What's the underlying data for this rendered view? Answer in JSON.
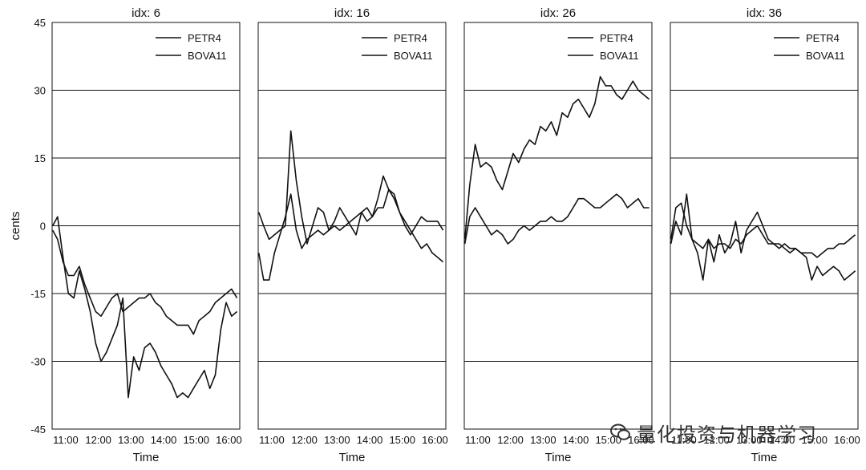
{
  "chart_data": [
    {
      "type": "line",
      "title": "idx: 6",
      "xlabel": "Time",
      "ylabel": "cents",
      "ylim": [
        -45,
        45
      ],
      "yticks": [
        -45,
        -30,
        -15,
        0,
        15,
        30,
        45
      ],
      "xlim": [
        "10:35",
        "16:20"
      ],
      "xticks": [
        "11:00",
        "12:00",
        "13:00",
        "14:00",
        "15:00",
        "16:00"
      ],
      "grid": "horizontal",
      "legend": "top-right",
      "series": [
        {
          "name": "PETR4",
          "x": [
            "10:36",
            "10:45",
            "10:55",
            "11:05",
            "11:15",
            "11:25",
            "11:35",
            "11:45",
            "11:55",
            "12:05",
            "12:15",
            "12:25",
            "12:35",
            "12:45",
            "12:55",
            "13:05",
            "13:15",
            "13:25",
            "13:35",
            "13:45",
            "13:55",
            "14:05",
            "14:15",
            "14:25",
            "14:35",
            "14:45",
            "14:55",
            "15:05",
            "15:15",
            "15:25",
            "15:35",
            "15:45",
            "15:55",
            "16:05",
            "16:15"
          ],
          "values": [
            -1,
            -3,
            -8,
            -11,
            -11,
            -9,
            -13,
            -16,
            -19,
            -20,
            -18,
            -16,
            -15,
            -19,
            -18,
            -17,
            -16,
            -16,
            -15,
            -17,
            -18,
            -20,
            -21,
            -22,
            -22,
            -22,
            -24,
            -21,
            -20,
            -19,
            -17,
            -16,
            -15,
            -14,
            -16
          ]
        },
        {
          "name": "BOVA11",
          "x": [
            "10:36",
            "10:45",
            "10:55",
            "11:05",
            "11:15",
            "11:25",
            "11:35",
            "11:45",
            "11:55",
            "12:05",
            "12:15",
            "12:25",
            "12:35",
            "12:45",
            "12:55",
            "13:05",
            "13:15",
            "13:25",
            "13:35",
            "13:45",
            "13:55",
            "14:05",
            "14:15",
            "14:25",
            "14:35",
            "14:45",
            "14:55",
            "15:05",
            "15:15",
            "15:25",
            "15:35",
            "15:45",
            "15:55",
            "16:05",
            "16:15"
          ],
          "values": [
            0,
            2,
            -7,
            -15,
            -16,
            -10,
            -14,
            -19,
            -26,
            -30,
            -28,
            -25,
            -22,
            -16,
            -38,
            -29,
            -32,
            -27,
            -26,
            -28,
            -31,
            -33,
            -35,
            -38,
            -37,
            -38,
            -36,
            -34,
            -32,
            -36,
            -33,
            -23,
            -17,
            -20,
            -19
          ]
        }
      ]
    },
    {
      "type": "line",
      "title": "idx: 16",
      "xlabel": "Time",
      "ylim": [
        -45,
        45
      ],
      "xlim": [
        "10:35",
        "16:20"
      ],
      "xticks": [
        "11:00",
        "12:00",
        "13:00",
        "14:00",
        "15:00",
        "16:00"
      ],
      "grid": "horizontal",
      "legend": "top-right",
      "series": [
        {
          "name": "PETR4",
          "x": [
            "10:36",
            "10:45",
            "10:55",
            "11:05",
            "11:15",
            "11:25",
            "11:35",
            "11:45",
            "11:55",
            "12:05",
            "12:15",
            "12:25",
            "12:35",
            "12:45",
            "12:55",
            "13:05",
            "13:15",
            "13:25",
            "13:35",
            "13:45",
            "13:55",
            "14:05",
            "14:15",
            "14:25",
            "14:35",
            "14:45",
            "14:55",
            "15:05",
            "15:15",
            "15:25",
            "15:35",
            "15:45",
            "15:55",
            "16:05",
            "16:15"
          ],
          "values": [
            -6,
            -12,
            -12,
            -6,
            -2,
            2,
            7,
            -1,
            -5,
            -3,
            -2,
            -1,
            -2,
            -1,
            0,
            -1,
            0,
            1,
            2,
            3,
            1,
            2,
            4,
            4,
            8,
            7,
            3,
            1,
            -1,
            -3,
            -5,
            -4,
            -6,
            -7,
            -8
          ]
        },
        {
          "name": "BOVA11",
          "x": [
            "10:36",
            "10:45",
            "10:55",
            "11:05",
            "11:15",
            "11:25",
            "11:35",
            "11:45",
            "11:55",
            "12:05",
            "12:15",
            "12:25",
            "12:35",
            "12:45",
            "12:55",
            "13:05",
            "13:15",
            "13:25",
            "13:35",
            "13:45",
            "13:55",
            "14:05",
            "14:15",
            "14:25",
            "14:35",
            "14:45",
            "14:55",
            "15:05",
            "15:15",
            "15:25",
            "15:35",
            "15:45",
            "15:55",
            "16:05",
            "16:15"
          ],
          "values": [
            3,
            0,
            -3,
            -2,
            -1,
            0,
            21,
            10,
            2,
            -4,
            0,
            4,
            3,
            -1,
            1,
            4,
            2,
            0,
            -2,
            3,
            4,
            2,
            6,
            11,
            8,
            6,
            3,
            0,
            -2,
            0,
            2,
            1,
            1,
            1,
            -1
          ]
        }
      ]
    },
    {
      "type": "line",
      "title": "idx: 26",
      "xlabel": "Time",
      "ylim": [
        -45,
        45
      ],
      "xlim": [
        "10:35",
        "16:20"
      ],
      "xticks": [
        "11:00",
        "12:00",
        "13:00",
        "14:00",
        "15:00",
        "16:00"
      ],
      "grid": "horizontal",
      "legend": "top-right",
      "series": [
        {
          "name": "PETR4",
          "x": [
            "10:36",
            "10:45",
            "10:55",
            "11:05",
            "11:15",
            "11:25",
            "11:35",
            "11:45",
            "11:55",
            "12:05",
            "12:15",
            "12:25",
            "12:35",
            "12:45",
            "12:55",
            "13:05",
            "13:15",
            "13:25",
            "13:35",
            "13:45",
            "13:55",
            "14:05",
            "14:15",
            "14:25",
            "14:35",
            "14:45",
            "14:55",
            "15:05",
            "15:15",
            "15:25",
            "15:35",
            "15:45",
            "15:55",
            "16:05",
            "16:15"
          ],
          "values": [
            -4,
            2,
            4,
            2,
            0,
            -2,
            -1,
            -2,
            -4,
            -3,
            -1,
            0,
            -1,
            0,
            1,
            1,
            2,
            1,
            1,
            2,
            4,
            6,
            6,
            5,
            4,
            4,
            5,
            6,
            7,
            6,
            4,
            5,
            6,
            4,
            4
          ]
        },
        {
          "name": "BOVA11",
          "x": [
            "10:36",
            "10:45",
            "10:55",
            "11:05",
            "11:15",
            "11:25",
            "11:35",
            "11:45",
            "11:55",
            "12:05",
            "12:15",
            "12:25",
            "12:35",
            "12:45",
            "12:55",
            "13:05",
            "13:15",
            "13:25",
            "13:35",
            "13:45",
            "13:55",
            "14:05",
            "14:15",
            "14:25",
            "14:35",
            "14:45",
            "14:55",
            "15:05",
            "15:15",
            "15:25",
            "15:35",
            "15:45",
            "15:55",
            "16:05",
            "16:15"
          ],
          "values": [
            -3,
            9,
            18,
            13,
            14,
            13,
            10,
            8,
            12,
            16,
            14,
            17,
            19,
            18,
            22,
            21,
            23,
            20,
            25,
            24,
            27,
            28,
            26,
            24,
            27,
            33,
            31,
            31,
            29,
            28,
            30,
            32,
            30,
            29,
            28
          ]
        }
      ]
    },
    {
      "type": "line",
      "title": "idx: 36",
      "xlabel": "Time",
      "ylim": [
        -45,
        45
      ],
      "xlim": [
        "10:35",
        "16:20"
      ],
      "xticks": [
        "11:00",
        "12:00",
        "13:00",
        "14:00",
        "15:00",
        "16:00"
      ],
      "grid": "horizontal",
      "legend": "top-right",
      "series": [
        {
          "name": "PETR4",
          "x": [
            "10:36",
            "10:45",
            "10:55",
            "11:05",
            "11:15",
            "11:25",
            "11:35",
            "11:45",
            "11:55",
            "12:05",
            "12:15",
            "12:25",
            "12:35",
            "12:45",
            "12:55",
            "13:05",
            "13:15",
            "13:25",
            "13:35",
            "13:45",
            "13:55",
            "14:05",
            "14:15",
            "14:25",
            "14:35",
            "14:45",
            "14:55",
            "15:05",
            "15:15",
            "15:25",
            "15:35",
            "15:45",
            "15:55",
            "16:05",
            "16:15"
          ],
          "values": [
            -3,
            4,
            5,
            0,
            -3,
            -4,
            -5,
            -3,
            -5,
            -4,
            -4,
            -5,
            -3,
            -4,
            -2,
            -1,
            0,
            -2,
            -4,
            -4,
            -5,
            -4,
            -5,
            -5,
            -6,
            -6,
            -6,
            -7,
            -6,
            -5,
            -5,
            -4,
            -4,
            -3,
            -2
          ]
        },
        {
          "name": "BOVA11",
          "x": [
            "10:36",
            "10:45",
            "10:55",
            "11:05",
            "11:15",
            "11:25",
            "11:35",
            "11:45",
            "11:55",
            "12:05",
            "12:15",
            "12:25",
            "12:35",
            "12:45",
            "12:55",
            "13:05",
            "13:15",
            "13:25",
            "13:35",
            "13:45",
            "13:55",
            "14:05",
            "14:15",
            "14:25",
            "14:35",
            "14:45",
            "14:55",
            "15:05",
            "15:15",
            "15:25",
            "15:35",
            "15:45",
            "15:55",
            "16:05",
            "16:15"
          ],
          "values": [
            -4,
            1,
            -2,
            7,
            -3,
            -6,
            -12,
            -3,
            -8,
            -2,
            -6,
            -4,
            1,
            -6,
            -1,
            1,
            3,
            0,
            -3,
            -4,
            -4,
            -5,
            -6,
            -5,
            -6,
            -7,
            -12,
            -9,
            -11,
            -10,
            -9,
            -10,
            -12,
            -11,
            -10
          ]
        }
      ]
    }
  ],
  "watermark": {
    "text": "量化投资与机器学习",
    "icon": "wechat-icon"
  }
}
